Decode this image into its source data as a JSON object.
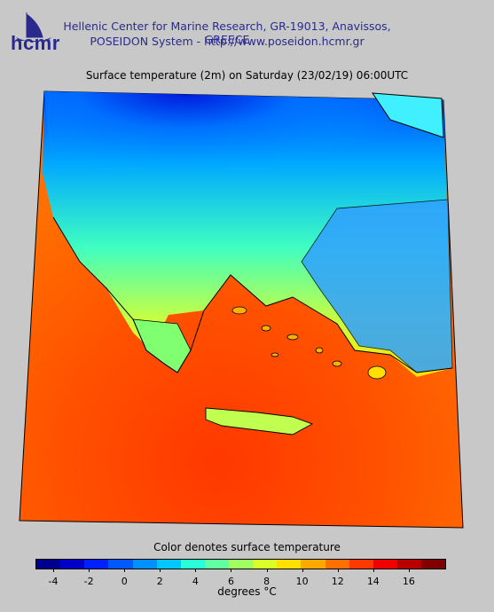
{
  "header": {
    "logo_text": "hcmr",
    "org_line1": "Hellenic Center for Marine Research, GR-19013, Anavissos, GREECE",
    "org_line2": "POSEIDON System - http://www.poseidon.hcmr.gr"
  },
  "map": {
    "title": "Surface temperature (2m) on Saturday (23/02/19) 06:00UTC"
  },
  "legend": {
    "title": "Color denotes surface temperature",
    "units": "degrees °C",
    "tick_labels": [
      "-4",
      "-2",
      "0",
      "2",
      "4",
      "6",
      "8",
      "10",
      "12",
      "14",
      "16"
    ],
    "range": [
      -5,
      18
    ],
    "colors": [
      "#00008f",
      "#0000c8",
      "#0020ff",
      "#0058ff",
      "#0090ff",
      "#00c8ff",
      "#28ffd8",
      "#60ffa0",
      "#a0ff60",
      "#d8ff28",
      "#ffe000",
      "#ffa800",
      "#ff7000",
      "#ff3800",
      "#f00000",
      "#b80000",
      "#800000"
    ]
  }
}
